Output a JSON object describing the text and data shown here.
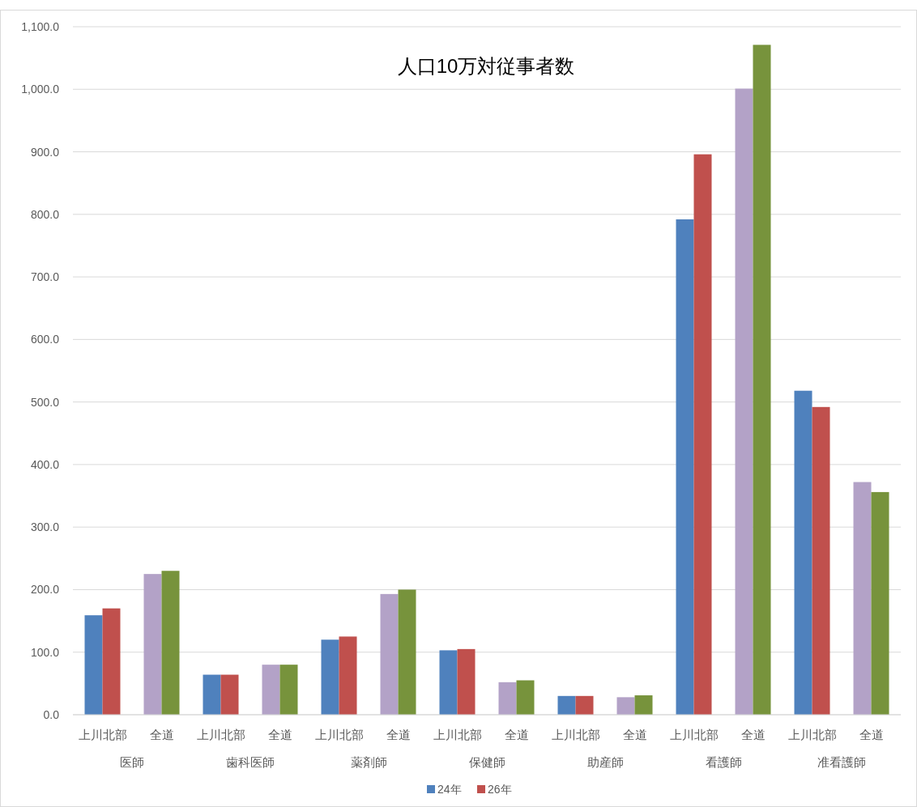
{
  "chart_data": {
    "type": "bar",
    "title": "人口10万対従事者数",
    "categories": [
      "上川北部",
      "全道",
      "上川北部",
      "全道",
      "上川北部",
      "全道",
      "上川北部",
      "全道",
      "上川北部",
      "全道",
      "上川北部",
      "全道",
      "上川北部",
      "全道"
    ],
    "annotations": [
      "医師",
      "歯科医師",
      "薬剤師",
      "保健師",
      "助産師",
      "看護師",
      "准看護師"
    ],
    "series": [
      {
        "name": "24年",
        "color": "#4f81bd",
        "colors": [
          "#4f81bd",
          "#b3a2c7",
          "#4f81bd",
          "#b3a2c7",
          "#4f81bd",
          "#b3a2c7",
          "#4f81bd",
          "#b3a2c7",
          "#4f81bd",
          "#b3a2c7",
          "#4f81bd",
          "#b3a2c7",
          "#4f81bd",
          "#b3a2c7"
        ],
        "values": [
          159,
          225,
          64,
          80,
          120,
          193,
          103,
          52,
          30,
          28,
          792,
          1001,
          518,
          372
        ]
      },
      {
        "name": "26年",
        "color": "#c0504d",
        "colors": [
          "#c0504d",
          "#77933c",
          "#c0504d",
          "#77933c",
          "#c0504d",
          "#77933c",
          "#c0504d",
          "#77933c",
          "#c0504d",
          "#77933c",
          "#c0504d",
          "#77933c",
          "#c0504d",
          "#77933c"
        ],
        "values": [
          170,
          230,
          64,
          80,
          125,
          200,
          105,
          55,
          30,
          31,
          896,
          1071,
          492,
          356
        ]
      }
    ],
    "ylim": [
      0,
      1100
    ],
    "yticks": [
      {
        "value": 0,
        "label": "0.0"
      },
      {
        "value": 100,
        "label": "100.0"
      },
      {
        "value": 200,
        "label": "200.0"
      },
      {
        "value": 300,
        "label": "300.0"
      },
      {
        "value": 400,
        "label": "400.0"
      },
      {
        "value": 500,
        "label": "500.0"
      },
      {
        "value": 600,
        "label": "600.0"
      },
      {
        "value": 700,
        "label": "700.0"
      },
      {
        "value": 800,
        "label": "800.0"
      },
      {
        "value": 900,
        "label": "900.0"
      },
      {
        "value": 1000,
        "label": "1,000.0"
      },
      {
        "value": 1100,
        "label": "1,100.0"
      }
    ],
    "grid": "y",
    "legend": "bottom"
  }
}
